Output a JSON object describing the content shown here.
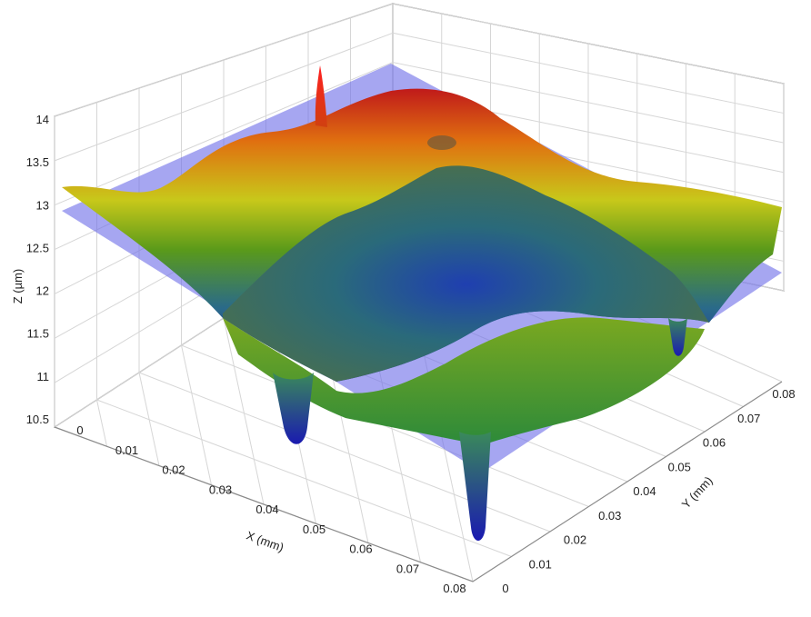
{
  "chart_data": {
    "type": "surface3d",
    "title": "",
    "x_axis": {
      "label": "X (mm)",
      "range": [
        0,
        0.08
      ],
      "ticks": [
        "0",
        "0.01",
        "0.02",
        "0.03",
        "0.04",
        "0.05",
        "0.06",
        "0.07",
        "0.08"
      ]
    },
    "y_axis": {
      "label": "Y (mm)",
      "range": [
        0,
        0.08
      ],
      "ticks": [
        "0",
        "0.01",
        "0.02",
        "0.03",
        "0.04",
        "0.05",
        "0.06",
        "0.07",
        "0.08"
      ]
    },
    "z_axis": {
      "label": "Z (µm)",
      "range": [
        10.5,
        14
      ],
      "ticks": [
        "10.5",
        "11",
        "11.5",
        "12",
        "12.5",
        "13",
        "13.5",
        "14"
      ]
    },
    "reference_plane_z": 12.9,
    "grid": true,
    "colormap": [
      "#1a1aa8",
      "#2a7a8a",
      "#5a9a1a",
      "#c8c81a",
      "#e07010",
      "#c01a1a"
    ],
    "plane_color": "#6f6fe8",
    "surface_features": [
      {
        "kind": "pit",
        "x": 0.04,
        "y": 0.0,
        "z_min": 10.5
      },
      {
        "kind": "pit",
        "x": 0.0,
        "y": 0.01,
        "z_min": 10.9
      },
      {
        "kind": "pit",
        "x": 0.08,
        "y": 0.055,
        "z_min": 11.4
      },
      {
        "kind": "spike",
        "x": 0.05,
        "y": 0.08,
        "z_max": 14.3
      }
    ]
  }
}
